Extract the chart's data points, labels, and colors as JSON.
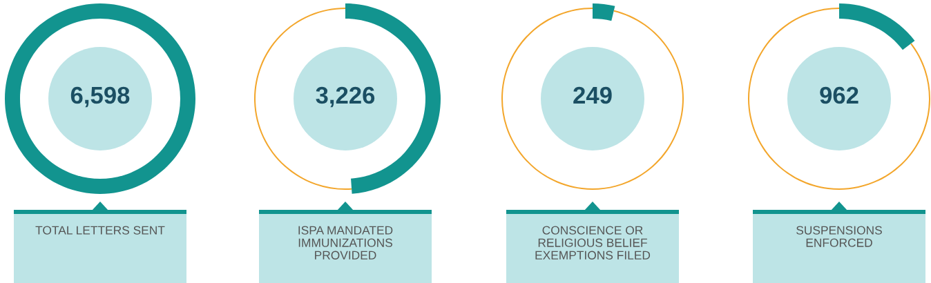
{
  "chart_data": [
    {
      "type": "donut",
      "title": "TOTAL LETTERS SENT",
      "categories": [
        null
      ],
      "values": [
        6598
      ],
      "colors": [
        "#12948f"
      ],
      "value_labels": [
        "6,598"
      ]
    },
    {
      "type": "donut",
      "title": "ISPA MANDATED\nIMMUNIZATIONS\nPROVIDED",
      "categories": [
        null,
        null
      ],
      "values": [
        3226,
        3372
      ],
      "colors": [
        "#12948f",
        "#f3a62b"
      ],
      "value_labels": [
        "3,226",
        null
      ]
    },
    {
      "type": "donut",
      "title": "CONSCIENCE OR\nRELIGIOUS BELIEF\nEXEMPTIONS FILED",
      "categories": [
        null,
        null
      ],
      "values": [
        249,
        6349
      ],
      "colors": [
        "#12948f",
        "#f3a62b"
      ],
      "value_labels": [
        "249",
        null
      ]
    },
    {
      "type": "donut",
      "title": "SUSPENSIONS\nENFORCED",
      "categories": [
        null,
        null
      ],
      "values": [
        962,
        5636
      ],
      "colors": [
        "#12948f",
        "#f3a62b"
      ],
      "value_labels": [
        "962",
        null
      ]
    }
  ]
}
